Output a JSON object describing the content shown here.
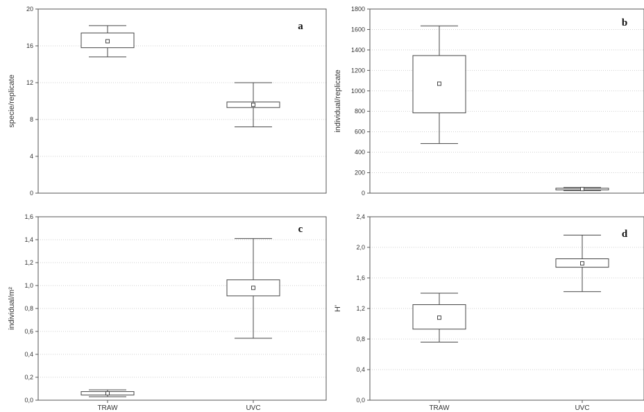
{
  "chart_data": [
    {
      "type": "box",
      "panel_label": "a",
      "ylabel": "specie/replicate",
      "yticks": [
        "0",
        "4",
        "8",
        "12",
        "16",
        "20"
      ],
      "ylim": [
        0,
        20
      ],
      "categories": [],
      "boxes": [
        {
          "whisker_low": 14.8,
          "q1": 15.8,
          "mean": 16.5,
          "q3": 17.4,
          "whisker_high": 18.2
        },
        {
          "whisker_low": 7.2,
          "q1": 9.3,
          "mean": 9.6,
          "q3": 9.9,
          "whisker_high": 12.0
        }
      ],
      "grid": "horizontal dotted"
    },
    {
      "type": "box",
      "panel_label": "b",
      "ylabel": "individual/replicate",
      "yticks": [
        "0",
        "200",
        "400",
        "600",
        "800",
        "1000",
        "1200",
        "1400",
        "1600",
        "1800"
      ],
      "ylim": [
        0,
        1800
      ],
      "categories": [],
      "boxes": [
        {
          "whisker_low": 485,
          "q1": 785,
          "mean": 1070,
          "q3": 1345,
          "whisker_high": 1635
        },
        {
          "whisker_low": 25,
          "q1": 32,
          "mean": 40,
          "q3": 48,
          "whisker_high": 55
        }
      ],
      "grid": "horizontal dotted"
    },
    {
      "type": "box",
      "panel_label": "c",
      "ylabel": "individual/m²",
      "yticks": [
        "0,0",
        "0,2",
        "0,4",
        "0,6",
        "0,8",
        "1,0",
        "1,2",
        "1,4",
        "1,6"
      ],
      "ylim": [
        0,
        1.6
      ],
      "categories": [
        "TRAW",
        "UVC"
      ],
      "boxes": [
        {
          "whisker_low": 0.03,
          "q1": 0.045,
          "mean": 0.06,
          "q3": 0.075,
          "whisker_high": 0.09
        },
        {
          "whisker_low": 0.54,
          "q1": 0.91,
          "mean": 0.98,
          "q3": 1.05,
          "whisker_high": 1.41
        }
      ],
      "grid": "horizontal dotted"
    },
    {
      "type": "box",
      "panel_label": "d",
      "ylabel": "H'",
      "yticks": [
        "0,0",
        "0,4",
        "0,8",
        "1,2",
        "1,6",
        "2,0",
        "2,4"
      ],
      "ylim": [
        0,
        2.4
      ],
      "categories": [
        "TRAW",
        "UVC"
      ],
      "boxes": [
        {
          "whisker_low": 0.76,
          "q1": 0.93,
          "mean": 1.08,
          "q3": 1.25,
          "whisker_high": 1.4
        },
        {
          "whisker_low": 1.42,
          "q1": 1.74,
          "mean": 1.79,
          "q3": 1.85,
          "whisker_high": 2.16
        }
      ],
      "grid": "horizontal dotted"
    }
  ]
}
